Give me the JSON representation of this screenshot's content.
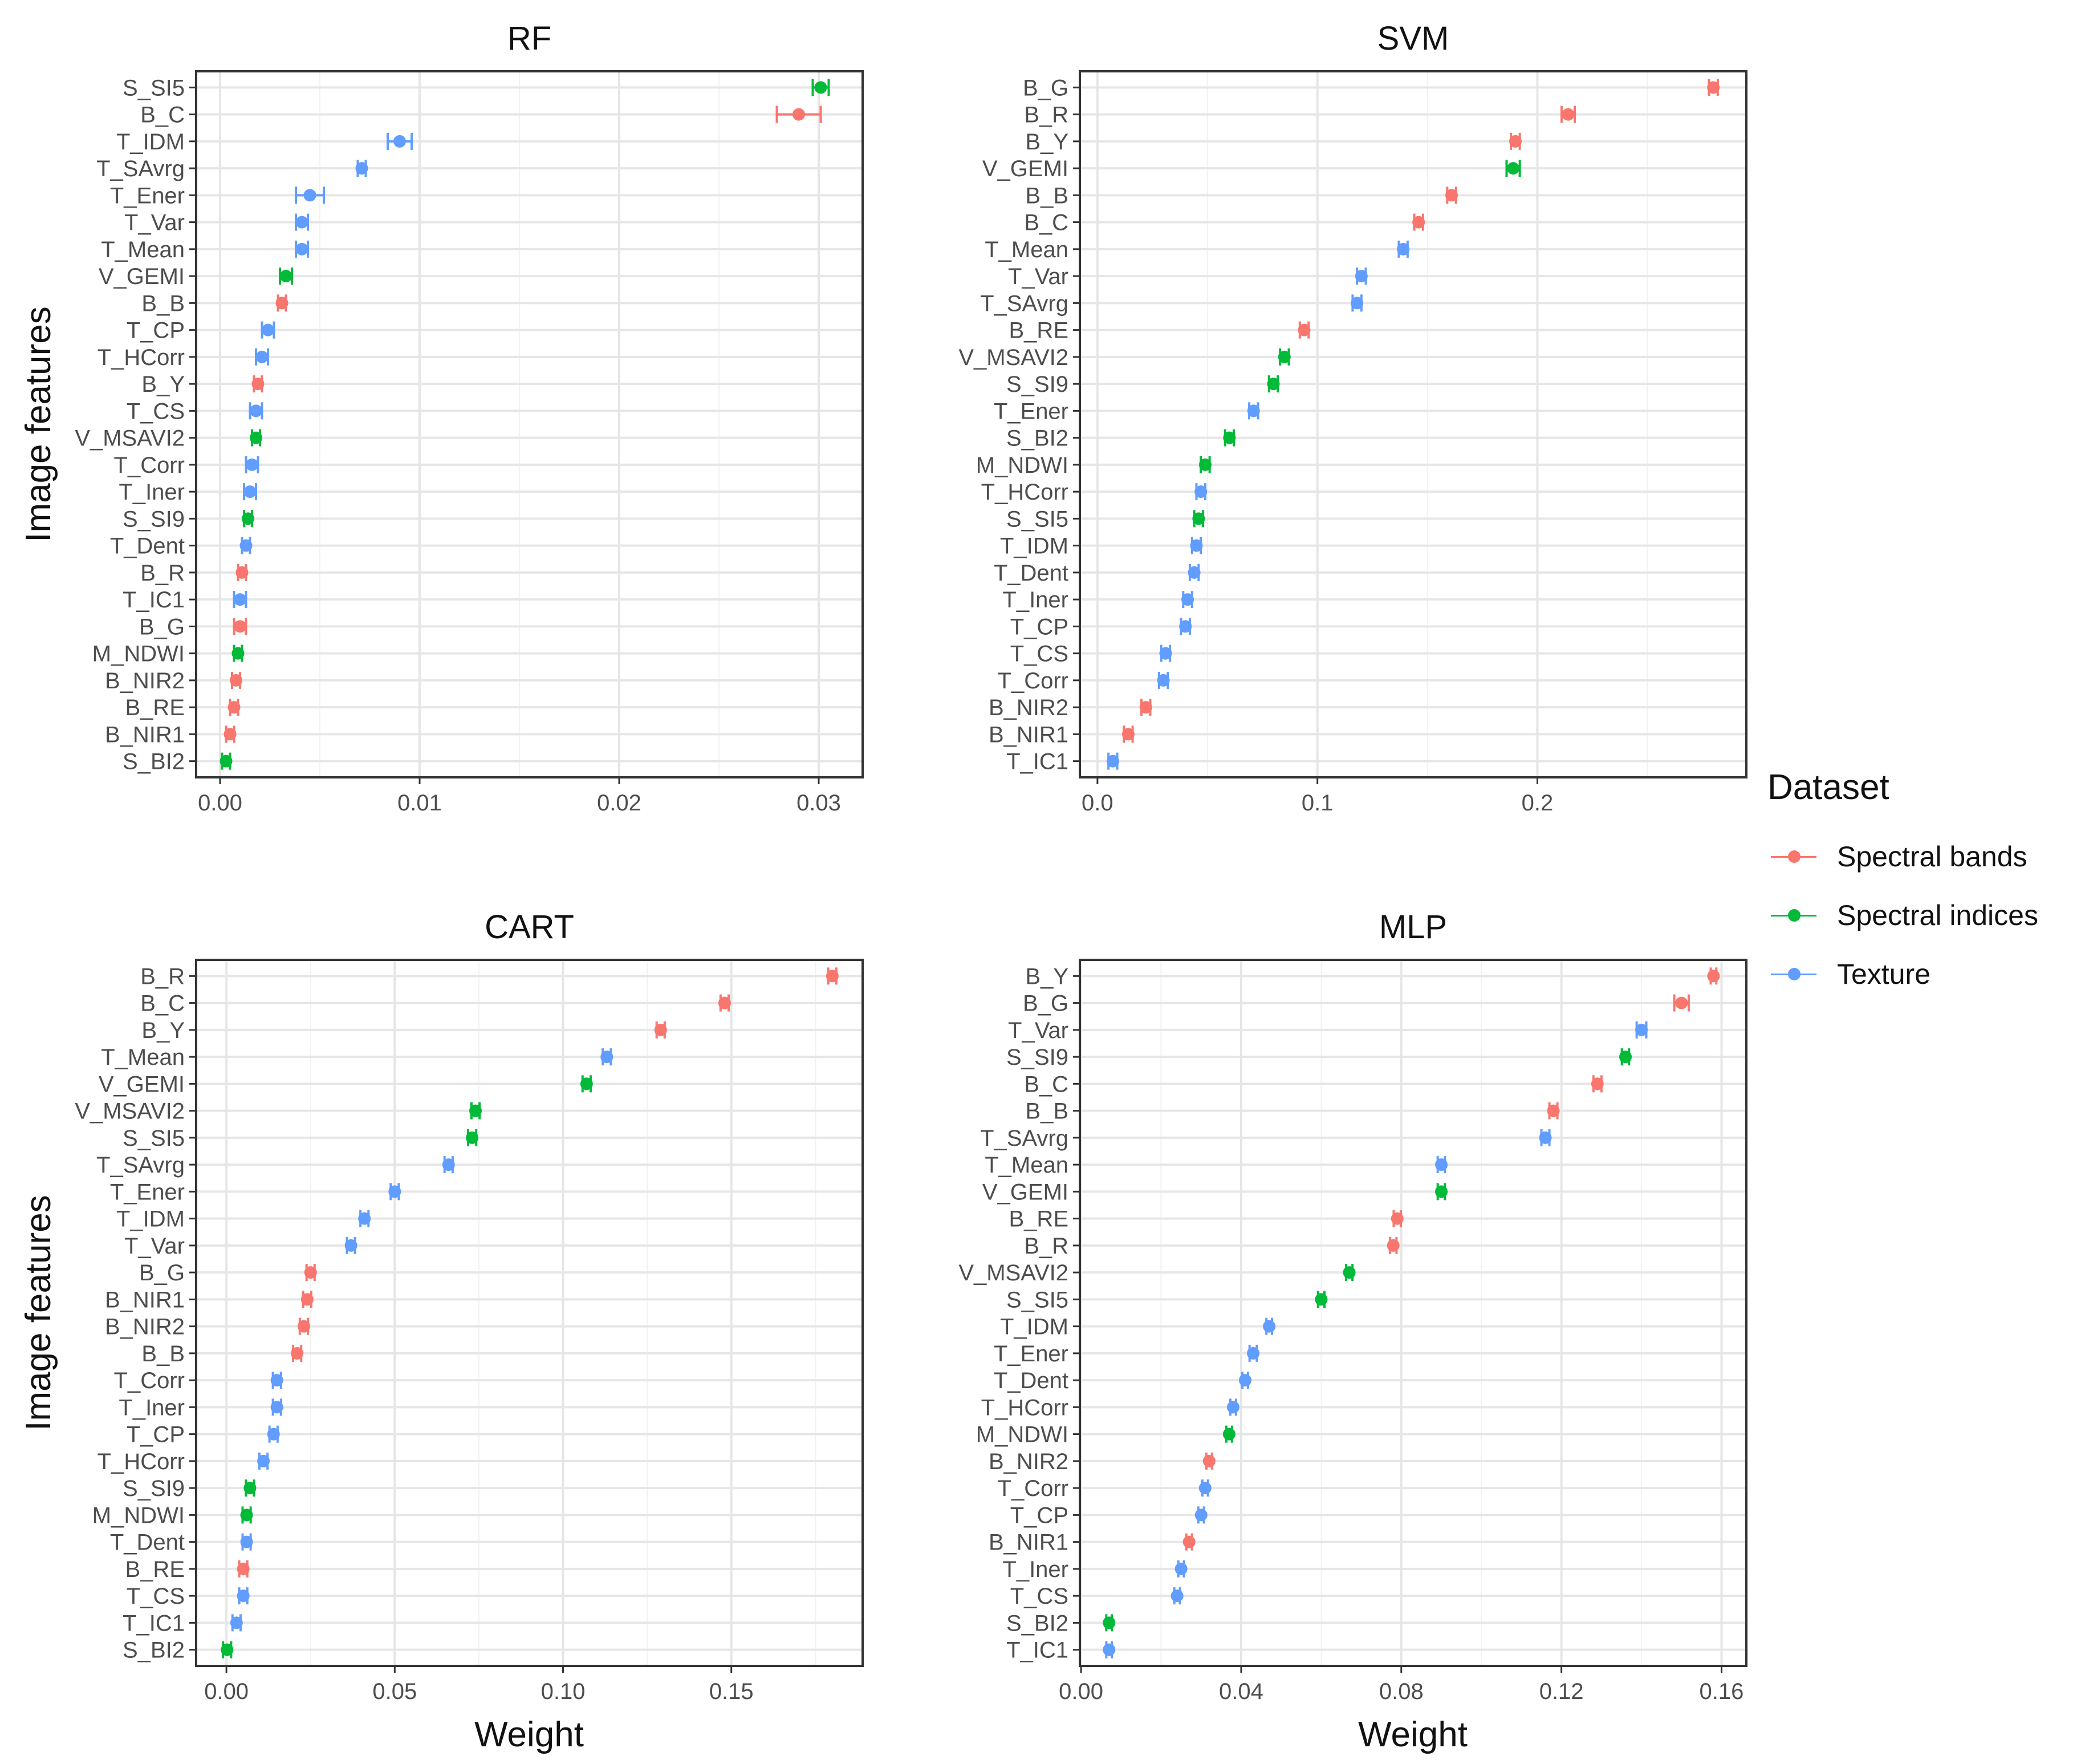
{
  "colors": {
    "Spectral bands": "#F8766D",
    "Spectral indices": "#00BA38",
    "Texture": "#619CFF"
  },
  "legend": {
    "title": "Dataset",
    "items": [
      {
        "label": "Spectral bands",
        "color": "#F8766D"
      },
      {
        "label": "Spectral indices",
        "color": "#00BA38"
      },
      {
        "label": "Texture",
        "color": "#619CFF"
      }
    ]
  },
  "axis_titles": {
    "y_top": "Image features",
    "y_bottom": "Image features",
    "x_bottom_left": "Weight",
    "x_bottom_right": "Weight"
  },
  "chart_data": [
    {
      "type": "scatter",
      "title": "RF",
      "xlabel": "",
      "ylabel": "Image features",
      "xlim": [
        -0.0012,
        0.0322
      ],
      "xticks": [
        "0.00",
        "0.01",
        "0.02",
        "0.03"
      ],
      "xtick_values": [
        0,
        0.01,
        0.02,
        0.03
      ],
      "features": [
        {
          "name": "S_SI5",
          "dataset": "Spectral indices",
          "value": 0.0301,
          "error": 0.0004
        },
        {
          "name": "B_C",
          "dataset": "Spectral bands",
          "value": 0.029,
          "error": 0.0011
        },
        {
          "name": "T_IDM",
          "dataset": "Texture",
          "value": 0.009,
          "error": 0.0006
        },
        {
          "name": "T_SAvrg",
          "dataset": "Texture",
          "value": 0.0071,
          "error": 0.0002
        },
        {
          "name": "T_Ener",
          "dataset": "Texture",
          "value": 0.0045,
          "error": 0.0007
        },
        {
          "name": "T_Var",
          "dataset": "Texture",
          "value": 0.0041,
          "error": 0.0003
        },
        {
          "name": "T_Mean",
          "dataset": "Texture",
          "value": 0.0041,
          "error": 0.0003
        },
        {
          "name": "V_GEMI",
          "dataset": "Spectral indices",
          "value": 0.0033,
          "error": 0.0003
        },
        {
          "name": "B_B",
          "dataset": "Spectral bands",
          "value": 0.0031,
          "error": 0.0002
        },
        {
          "name": "T_CP",
          "dataset": "Texture",
          "value": 0.0024,
          "error": 0.0003
        },
        {
          "name": "T_HCorr",
          "dataset": "Texture",
          "value": 0.0021,
          "error": 0.0003
        },
        {
          "name": "B_Y",
          "dataset": "Spectral bands",
          "value": 0.0019,
          "error": 0.0002
        },
        {
          "name": "T_CS",
          "dataset": "Texture",
          "value": 0.0018,
          "error": 0.0003
        },
        {
          "name": "V_MSAVI2",
          "dataset": "Spectral indices",
          "value": 0.0018,
          "error": 0.0002
        },
        {
          "name": "T_Corr",
          "dataset": "Texture",
          "value": 0.0016,
          "error": 0.0003
        },
        {
          "name": "T_Iner",
          "dataset": "Texture",
          "value": 0.0015,
          "error": 0.0003
        },
        {
          "name": "S_SI9",
          "dataset": "Spectral indices",
          "value": 0.0014,
          "error": 0.0002
        },
        {
          "name": "T_Dent",
          "dataset": "Texture",
          "value": 0.0013,
          "error": 0.0002
        },
        {
          "name": "B_R",
          "dataset": "Spectral bands",
          "value": 0.0011,
          "error": 0.0002
        },
        {
          "name": "T_IC1",
          "dataset": "Texture",
          "value": 0.001,
          "error": 0.0003
        },
        {
          "name": "B_G",
          "dataset": "Spectral bands",
          "value": 0.001,
          "error": 0.0003
        },
        {
          "name": "M_NDWI",
          "dataset": "Spectral indices",
          "value": 0.0009,
          "error": 0.0002
        },
        {
          "name": "B_NIR2",
          "dataset": "Spectral bands",
          "value": 0.0008,
          "error": 0.0002
        },
        {
          "name": "B_RE",
          "dataset": "Spectral bands",
          "value": 0.0007,
          "error": 0.0002
        },
        {
          "name": "B_NIR1",
          "dataset": "Spectral bands",
          "value": 0.0005,
          "error": 0.0002
        },
        {
          "name": "S_BI2",
          "dataset": "Spectral indices",
          "value": 0.0003,
          "error": 0.0002
        }
      ]
    },
    {
      "type": "scatter",
      "title": "SVM",
      "xlabel": "",
      "ylabel": "",
      "xlim": [
        -0.008,
        0.295
      ],
      "xticks": [
        "0.0",
        "0.1",
        "0.2"
      ],
      "xtick_values": [
        0,
        0.1,
        0.2
      ],
      "features": [
        {
          "name": "B_G",
          "dataset": "Spectral bands",
          "value": 0.28,
          "error": 0.002
        },
        {
          "name": "B_R",
          "dataset": "Spectral bands",
          "value": 0.214,
          "error": 0.003
        },
        {
          "name": "B_Y",
          "dataset": "Spectral bands",
          "value": 0.19,
          "error": 0.002
        },
        {
          "name": "V_GEMI",
          "dataset": "Spectral indices",
          "value": 0.189,
          "error": 0.003
        },
        {
          "name": "B_B",
          "dataset": "Spectral bands",
          "value": 0.161,
          "error": 0.002
        },
        {
          "name": "B_C",
          "dataset": "Spectral bands",
          "value": 0.146,
          "error": 0.002
        },
        {
          "name": "T_Mean",
          "dataset": "Texture",
          "value": 0.139,
          "error": 0.002
        },
        {
          "name": "T_Var",
          "dataset": "Texture",
          "value": 0.12,
          "error": 0.002
        },
        {
          "name": "T_SAvrg",
          "dataset": "Texture",
          "value": 0.118,
          "error": 0.002
        },
        {
          "name": "B_RE",
          "dataset": "Spectral bands",
          "value": 0.094,
          "error": 0.002
        },
        {
          "name": "V_MSAVI2",
          "dataset": "Spectral indices",
          "value": 0.085,
          "error": 0.002
        },
        {
          "name": "S_SI9",
          "dataset": "Spectral indices",
          "value": 0.08,
          "error": 0.002
        },
        {
          "name": "T_Ener",
          "dataset": "Texture",
          "value": 0.071,
          "error": 0.002
        },
        {
          "name": "S_BI2",
          "dataset": "Spectral indices",
          "value": 0.06,
          "error": 0.002
        },
        {
          "name": "M_NDWI",
          "dataset": "Spectral indices",
          "value": 0.049,
          "error": 0.002
        },
        {
          "name": "T_HCorr",
          "dataset": "Texture",
          "value": 0.047,
          "error": 0.002
        },
        {
          "name": "S_SI5",
          "dataset": "Spectral indices",
          "value": 0.046,
          "error": 0.002
        },
        {
          "name": "T_IDM",
          "dataset": "Texture",
          "value": 0.045,
          "error": 0.002
        },
        {
          "name": "T_Dent",
          "dataset": "Texture",
          "value": 0.044,
          "error": 0.002
        },
        {
          "name": "T_Iner",
          "dataset": "Texture",
          "value": 0.041,
          "error": 0.002
        },
        {
          "name": "T_CP",
          "dataset": "Texture",
          "value": 0.04,
          "error": 0.002
        },
        {
          "name": "T_CS",
          "dataset": "Texture",
          "value": 0.031,
          "error": 0.002
        },
        {
          "name": "T_Corr",
          "dataset": "Texture",
          "value": 0.03,
          "error": 0.002
        },
        {
          "name": "B_NIR2",
          "dataset": "Spectral bands",
          "value": 0.022,
          "error": 0.002
        },
        {
          "name": "B_NIR1",
          "dataset": "Spectral bands",
          "value": 0.014,
          "error": 0.002
        },
        {
          "name": "T_IC1",
          "dataset": "Texture",
          "value": 0.007,
          "error": 0.002
        }
      ]
    },
    {
      "type": "scatter",
      "title": "CART",
      "xlabel": "Weight",
      "ylabel": "Image features",
      "xlim": [
        -0.009,
        0.189
      ],
      "xticks": [
        "0.00",
        "0.05",
        "0.10",
        "0.15"
      ],
      "xtick_values": [
        0,
        0.05,
        0.1,
        0.15
      ],
      "features": [
        {
          "name": "B_R",
          "dataset": "Spectral bands",
          "value": 0.18,
          "error": 0.0012
        },
        {
          "name": "B_C",
          "dataset": "Spectral bands",
          "value": 0.148,
          "error": 0.0012
        },
        {
          "name": "B_Y",
          "dataset": "Spectral bands",
          "value": 0.129,
          "error": 0.0012
        },
        {
          "name": "T_Mean",
          "dataset": "Texture",
          "value": 0.113,
          "error": 0.0012
        },
        {
          "name": "V_GEMI",
          "dataset": "Spectral indices",
          "value": 0.107,
          "error": 0.0012
        },
        {
          "name": "V_MSAVI2",
          "dataset": "Spectral indices",
          "value": 0.074,
          "error": 0.0012
        },
        {
          "name": "S_SI5",
          "dataset": "Spectral indices",
          "value": 0.073,
          "error": 0.0012
        },
        {
          "name": "T_SAvrg",
          "dataset": "Texture",
          "value": 0.066,
          "error": 0.0012
        },
        {
          "name": "T_Ener",
          "dataset": "Texture",
          "value": 0.05,
          "error": 0.0012
        },
        {
          "name": "T_IDM",
          "dataset": "Texture",
          "value": 0.041,
          "error": 0.0012
        },
        {
          "name": "T_Var",
          "dataset": "Texture",
          "value": 0.037,
          "error": 0.0012
        },
        {
          "name": "B_G",
          "dataset": "Spectral bands",
          "value": 0.025,
          "error": 0.0012
        },
        {
          "name": "B_NIR1",
          "dataset": "Spectral bands",
          "value": 0.024,
          "error": 0.0012
        },
        {
          "name": "B_NIR2",
          "dataset": "Spectral bands",
          "value": 0.023,
          "error": 0.0012
        },
        {
          "name": "B_B",
          "dataset": "Spectral bands",
          "value": 0.021,
          "error": 0.0012
        },
        {
          "name": "T_Corr",
          "dataset": "Texture",
          "value": 0.015,
          "error": 0.0012
        },
        {
          "name": "T_Iner",
          "dataset": "Texture",
          "value": 0.015,
          "error": 0.0012
        },
        {
          "name": "T_CP",
          "dataset": "Texture",
          "value": 0.014,
          "error": 0.0012
        },
        {
          "name": "T_HCorr",
          "dataset": "Texture",
          "value": 0.011,
          "error": 0.0012
        },
        {
          "name": "S_SI9",
          "dataset": "Spectral indices",
          "value": 0.007,
          "error": 0.0012
        },
        {
          "name": "M_NDWI",
          "dataset": "Spectral indices",
          "value": 0.006,
          "error": 0.0012
        },
        {
          "name": "T_Dent",
          "dataset": "Texture",
          "value": 0.006,
          "error": 0.0012
        },
        {
          "name": "B_RE",
          "dataset": "Spectral bands",
          "value": 0.005,
          "error": 0.0012
        },
        {
          "name": "T_CS",
          "dataset": "Texture",
          "value": 0.005,
          "error": 0.0012
        },
        {
          "name": "T_IC1",
          "dataset": "Texture",
          "value": 0.003,
          "error": 0.0012
        },
        {
          "name": "S_BI2",
          "dataset": "Spectral indices",
          "value": 0.0002,
          "error": 0.0012
        }
      ]
    },
    {
      "type": "scatter",
      "title": "MLP",
      "xlabel": "Weight",
      "ylabel": "",
      "xlim": [
        -0.0003,
        0.1662
      ],
      "xticks": [
        "0.00",
        "0.04",
        "0.08",
        "0.12",
        "0.16"
      ],
      "xtick_values": [
        0,
        0.04,
        0.08,
        0.12,
        0.16
      ],
      "features": [
        {
          "name": "B_Y",
          "dataset": "Spectral bands",
          "value": 0.158,
          "error": 0.0007
        },
        {
          "name": "B_G",
          "dataset": "Spectral bands",
          "value": 0.15,
          "error": 0.0018
        },
        {
          "name": "T_Var",
          "dataset": "Texture",
          "value": 0.14,
          "error": 0.0012
        },
        {
          "name": "S_SI9",
          "dataset": "Spectral indices",
          "value": 0.136,
          "error": 0.0009
        },
        {
          "name": "B_C",
          "dataset": "Spectral bands",
          "value": 0.129,
          "error": 0.001
        },
        {
          "name": "B_B",
          "dataset": "Spectral bands",
          "value": 0.118,
          "error": 0.001
        },
        {
          "name": "T_SAvrg",
          "dataset": "Texture",
          "value": 0.116,
          "error": 0.001
        },
        {
          "name": "T_Mean",
          "dataset": "Texture",
          "value": 0.09,
          "error": 0.0009
        },
        {
          "name": "V_GEMI",
          "dataset": "Spectral indices",
          "value": 0.09,
          "error": 0.0009
        },
        {
          "name": "B_RE",
          "dataset": "Spectral bands",
          "value": 0.079,
          "error": 0.0009
        },
        {
          "name": "B_R",
          "dataset": "Spectral bands",
          "value": 0.078,
          "error": 0.0008
        },
        {
          "name": "V_MSAVI2",
          "dataset": "Spectral indices",
          "value": 0.067,
          "error": 0.0008
        },
        {
          "name": "S_SI5",
          "dataset": "Spectral indices",
          "value": 0.06,
          "error": 0.0008
        },
        {
          "name": "T_IDM",
          "dataset": "Texture",
          "value": 0.047,
          "error": 0.0007
        },
        {
          "name": "T_Ener",
          "dataset": "Texture",
          "value": 0.043,
          "error": 0.0009
        },
        {
          "name": "T_Dent",
          "dataset": "Texture",
          "value": 0.041,
          "error": 0.0007
        },
        {
          "name": "T_HCorr",
          "dataset": "Texture",
          "value": 0.038,
          "error": 0.0007
        },
        {
          "name": "M_NDWI",
          "dataset": "Spectral indices",
          "value": 0.037,
          "error": 0.0007
        },
        {
          "name": "B_NIR2",
          "dataset": "Spectral bands",
          "value": 0.032,
          "error": 0.0007
        },
        {
          "name": "T_Corr",
          "dataset": "Texture",
          "value": 0.031,
          "error": 0.0007
        },
        {
          "name": "T_CP",
          "dataset": "Texture",
          "value": 0.03,
          "error": 0.0007
        },
        {
          "name": "B_NIR1",
          "dataset": "Spectral bands",
          "value": 0.027,
          "error": 0.0007
        },
        {
          "name": "T_Iner",
          "dataset": "Texture",
          "value": 0.025,
          "error": 0.0007
        },
        {
          "name": "T_CS",
          "dataset": "Texture",
          "value": 0.024,
          "error": 0.0007
        },
        {
          "name": "S_BI2",
          "dataset": "Spectral indices",
          "value": 0.007,
          "error": 0.0007
        },
        {
          "name": "T_IC1",
          "dataset": "Texture",
          "value": 0.007,
          "error": 0.0007
        }
      ]
    }
  ]
}
